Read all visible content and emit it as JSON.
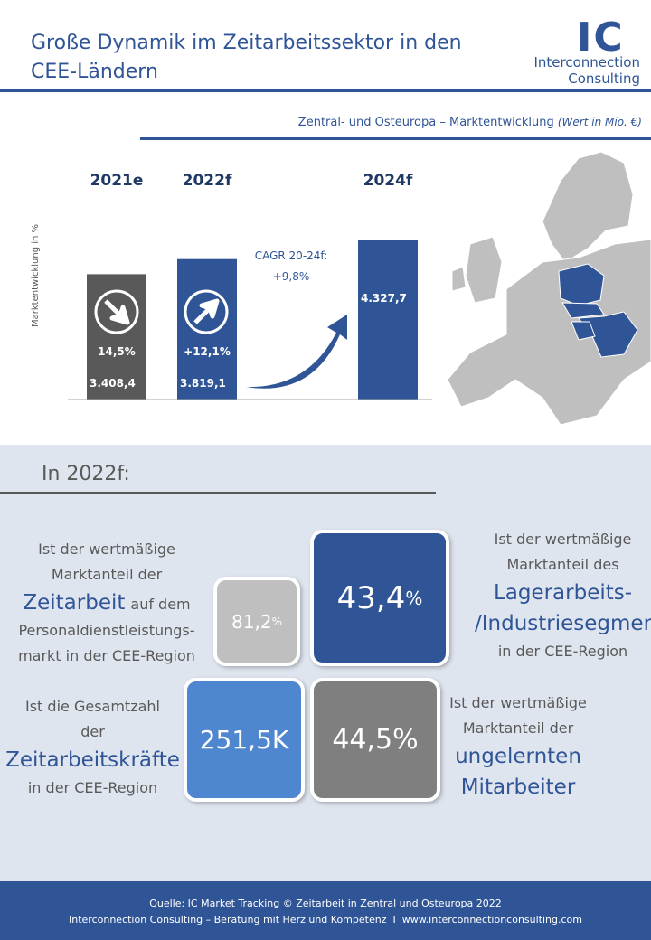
{
  "header": {
    "title": "Große Dynamik im Zeitarbeitssektor in den CEE-Ländern",
    "logo": {
      "initials": "IC",
      "name": "Interconnection",
      "subname": "Consulting"
    }
  },
  "chart_data": {
    "type": "bar",
    "subtitle": "Zentral- und Osteuropa – Marktentwicklung",
    "subtitle_note": "(Wert in Mio. €)",
    "y_label": "Marktentwicklung in %",
    "categories": [
      "2021e",
      "2022f",
      null,
      "2024f"
    ],
    "values": [
      3408.4,
      3819.1,
      null,
      4327.7
    ],
    "value_labels": [
      "3.408,4",
      "3.819,1",
      null,
      "4.327,7"
    ],
    "growth_labels": [
      "14,5%",
      "+12,1%",
      null,
      null
    ],
    "colors": [
      "#595959",
      "#2f5597",
      null,
      "#2f5597"
    ],
    "annotation": {
      "title": "CAGR 20-24f:",
      "value": "+9,8%"
    }
  },
  "section": {
    "title": "In 2022f:",
    "stats": [
      {
        "value": "81,2",
        "unit": "%",
        "lines": [
          [
            {
              "text": "Ist der wertmäßige"
            }
          ],
          [
            {
              "text": "Marktanteil der"
            }
          ],
          [
            {
              "text": "Zeitarbeit",
              "emphasis": true
            },
            {
              "text": "auf dem"
            }
          ],
          [
            {
              "text": "Personaldienstleistungs-"
            }
          ],
          [
            {
              "text": "markt in der CEE-Region"
            }
          ]
        ]
      },
      {
        "value": "43,4",
        "unit": "%",
        "lines": [
          [
            {
              "text": "Ist der wertmäßige"
            }
          ],
          [
            {
              "text": "Marktanteil des"
            }
          ],
          [
            {
              "text": "Lagerarbeits-",
              "emphasis": true
            }
          ],
          [
            {
              "text": "/Industriesegments",
              "emphasis": true
            }
          ],
          [
            {
              "text": "in der CEE-Region"
            }
          ]
        ]
      },
      {
        "value": "251,5K",
        "lines": [
          [
            {
              "text": "Ist die Gesamtzahl"
            }
          ],
          [
            {
              "text": "der"
            }
          ],
          [
            {
              "text": "Zeitarbeitskräfte",
              "emphasis": true
            }
          ],
          [
            {
              "text": "in der CEE-Region"
            }
          ]
        ]
      },
      {
        "value": "44,5%",
        "lines": [
          [
            {
              "text": "Ist der wertmäßige"
            }
          ],
          [
            {
              "text": "Marktanteil der"
            }
          ],
          [
            {
              "text": "ungelernten",
              "emphasis": true
            }
          ],
          [
            {
              "text": "Mitarbeiter",
              "emphasis": true
            }
          ]
        ]
      }
    ]
  },
  "footer": {
    "source": "Quelle: IC Market Tracking © Zeitarbeit in Zentral und Osteuropa 2022",
    "tagline": "Interconnection Consulting – Beratung mit Herz und Kompetenz  I  www.interconnectionconsulting.com"
  }
}
